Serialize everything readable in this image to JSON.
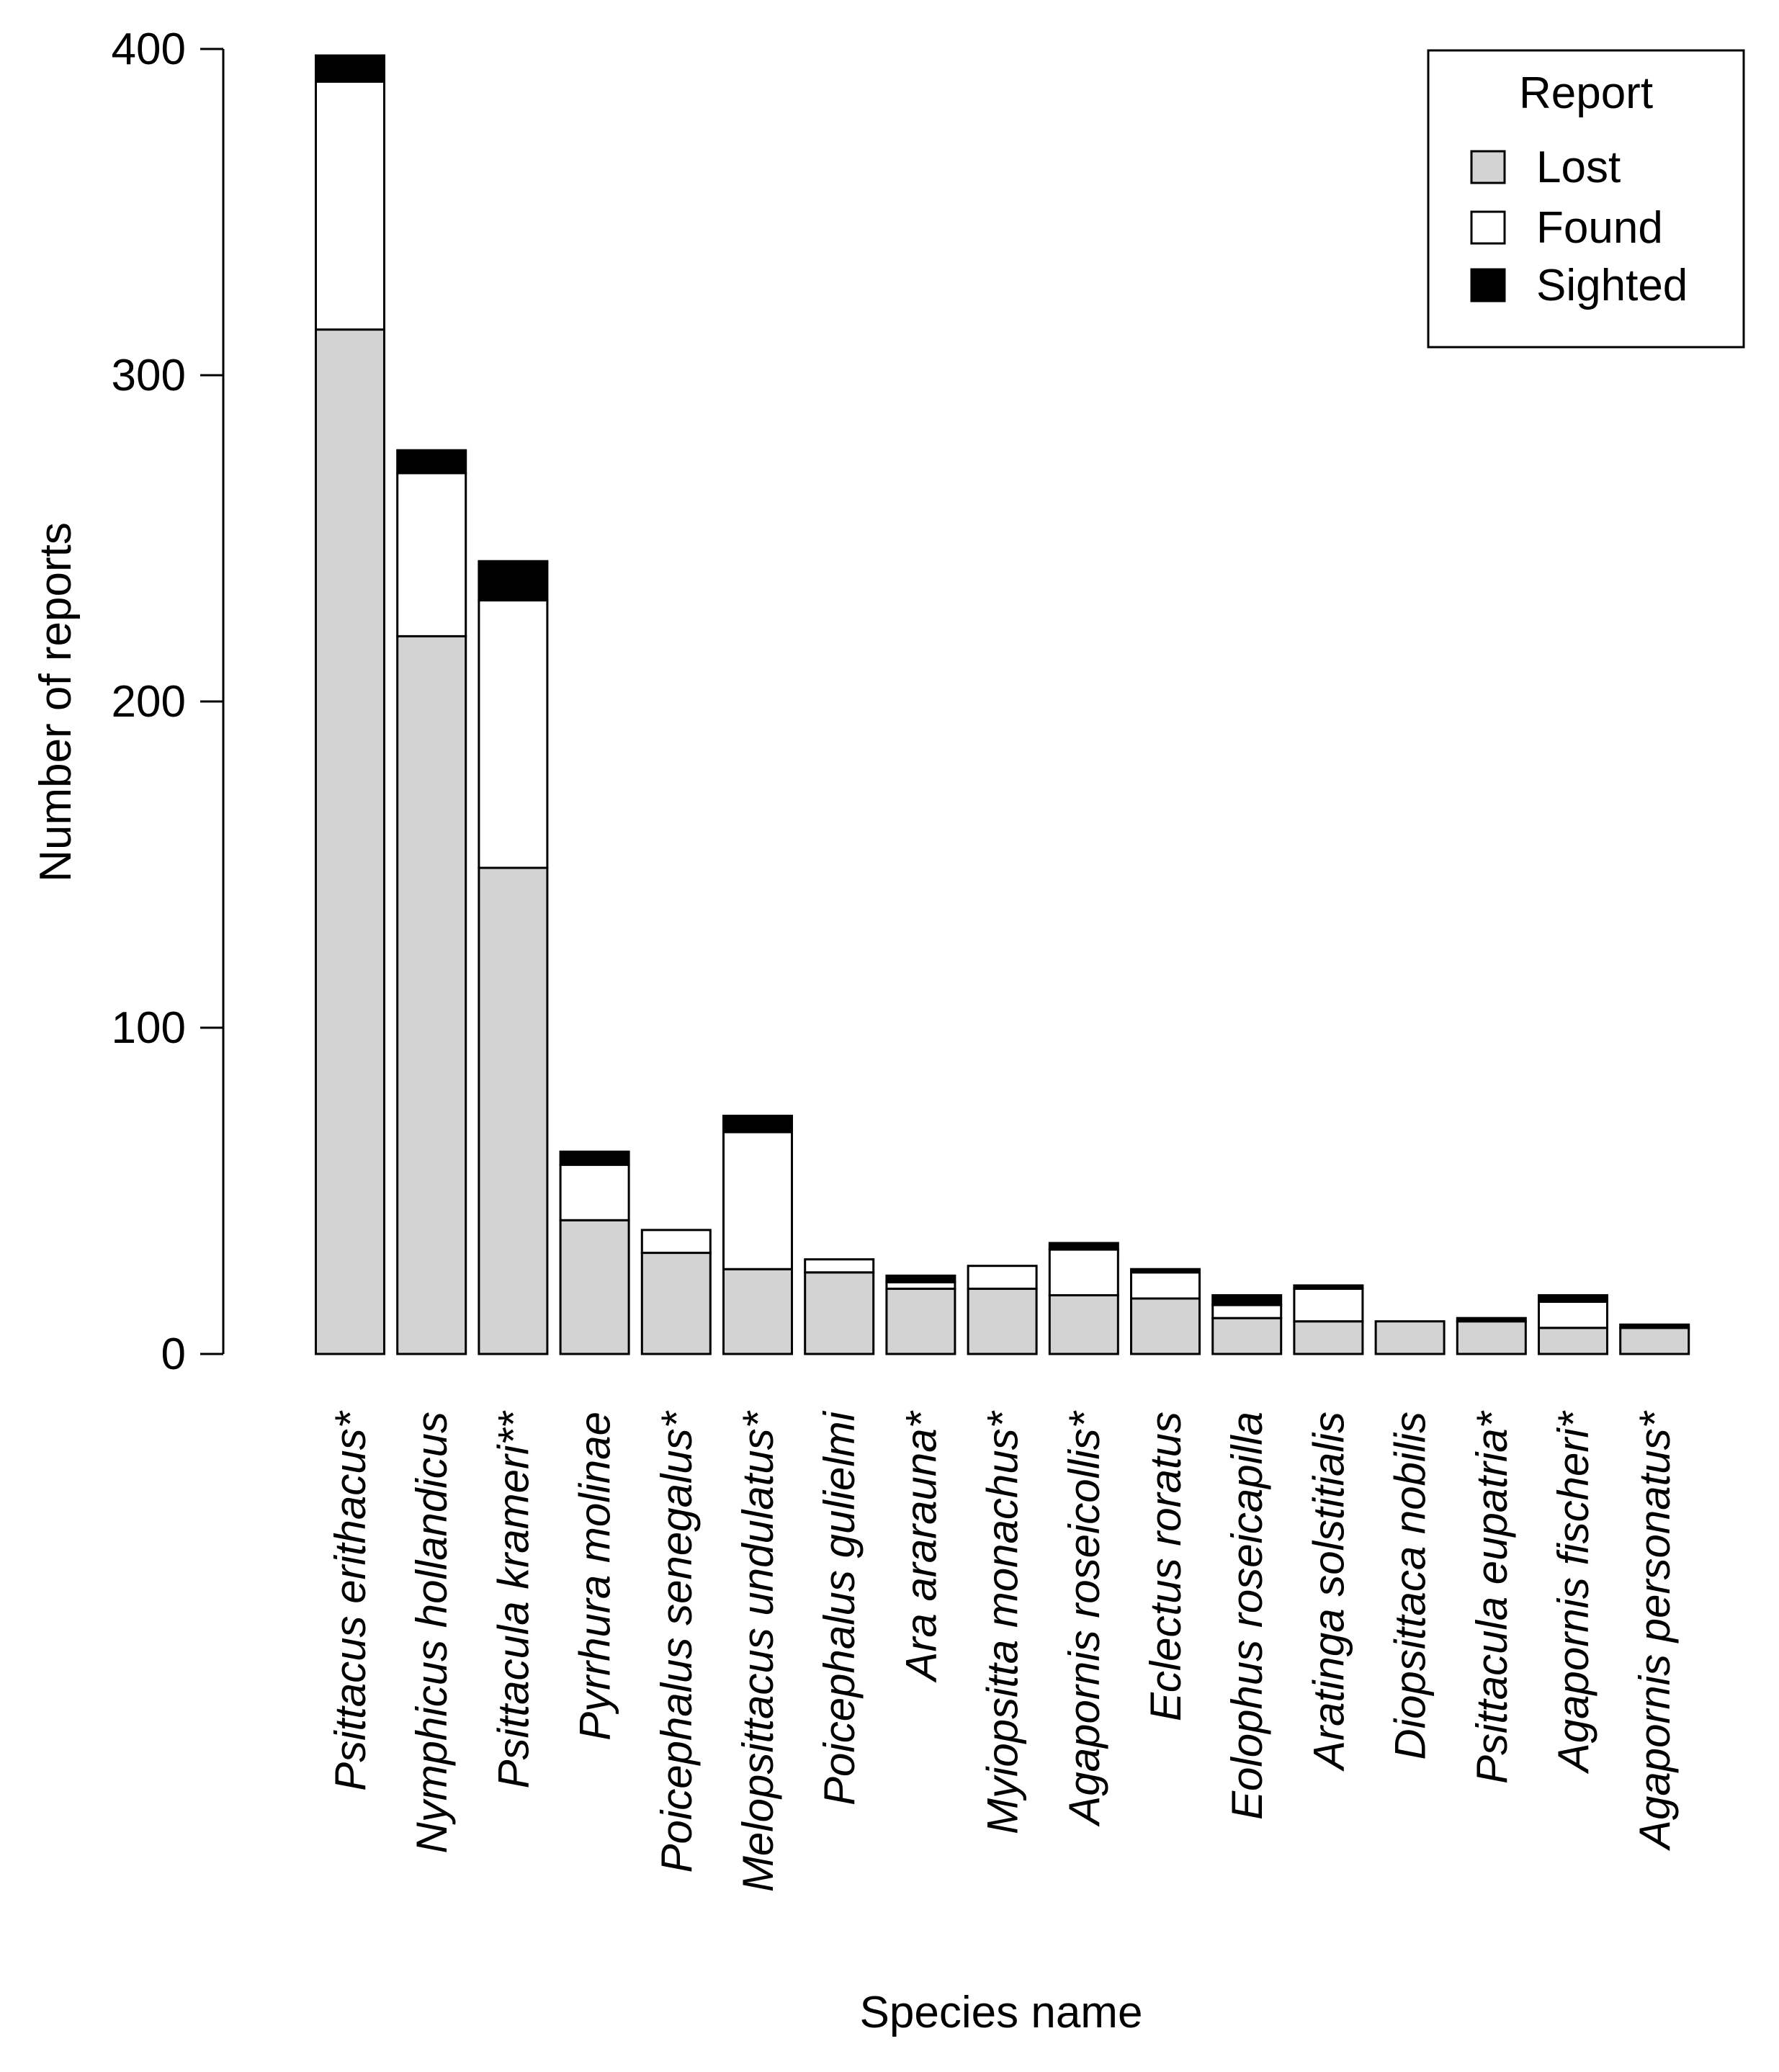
{
  "chart_data": {
    "type": "bar",
    "stacked": true,
    "title": "",
    "xlabel": "Species name",
    "ylabel": "Number of reports",
    "ylim": [
      0,
      400
    ],
    "yticks": [
      0,
      100,
      200,
      300,
      400
    ],
    "legend": {
      "title": "Report",
      "position": "top-right"
    },
    "categories": [
      "Psittacus erithacus*",
      "Nymphicus hollandicus",
      "Psittacula krameri**",
      "Pyrrhura molinae",
      "Poicephalus senegalus*",
      "Melopsittacus undulatus*",
      "Poicephalus gulielmi",
      "Ara ararauna*",
      "Myiopsitta monachus*",
      "Agapornis roseicollis*",
      "Eclectus roratus",
      "Eolophus roseicapilla",
      "Aratinga solstitialis",
      "Diopsittaca nobilis",
      "Psittacula eupatria*",
      "Agapornis fischeri*",
      "Agapornis personatus*"
    ],
    "series": [
      {
        "name": "Lost",
        "color": "#d3d3d3",
        "values": [
          314,
          220,
          149,
          41,
          31,
          26,
          25,
          20,
          20,
          18,
          17,
          11,
          10,
          10,
          10,
          8,
          8
        ]
      },
      {
        "name": "Found",
        "color": "#ffffff",
        "values": [
          76,
          50,
          82,
          17,
          7,
          42,
          4,
          2,
          7,
          14,
          8,
          4,
          10,
          0,
          0,
          8,
          0
        ]
      },
      {
        "name": "Sighted",
        "color": "#000000",
        "values": [
          8,
          7,
          12,
          4,
          0,
          5,
          0,
          2,
          0,
          2,
          1,
          3,
          1,
          0,
          1,
          2,
          1
        ]
      }
    ]
  }
}
